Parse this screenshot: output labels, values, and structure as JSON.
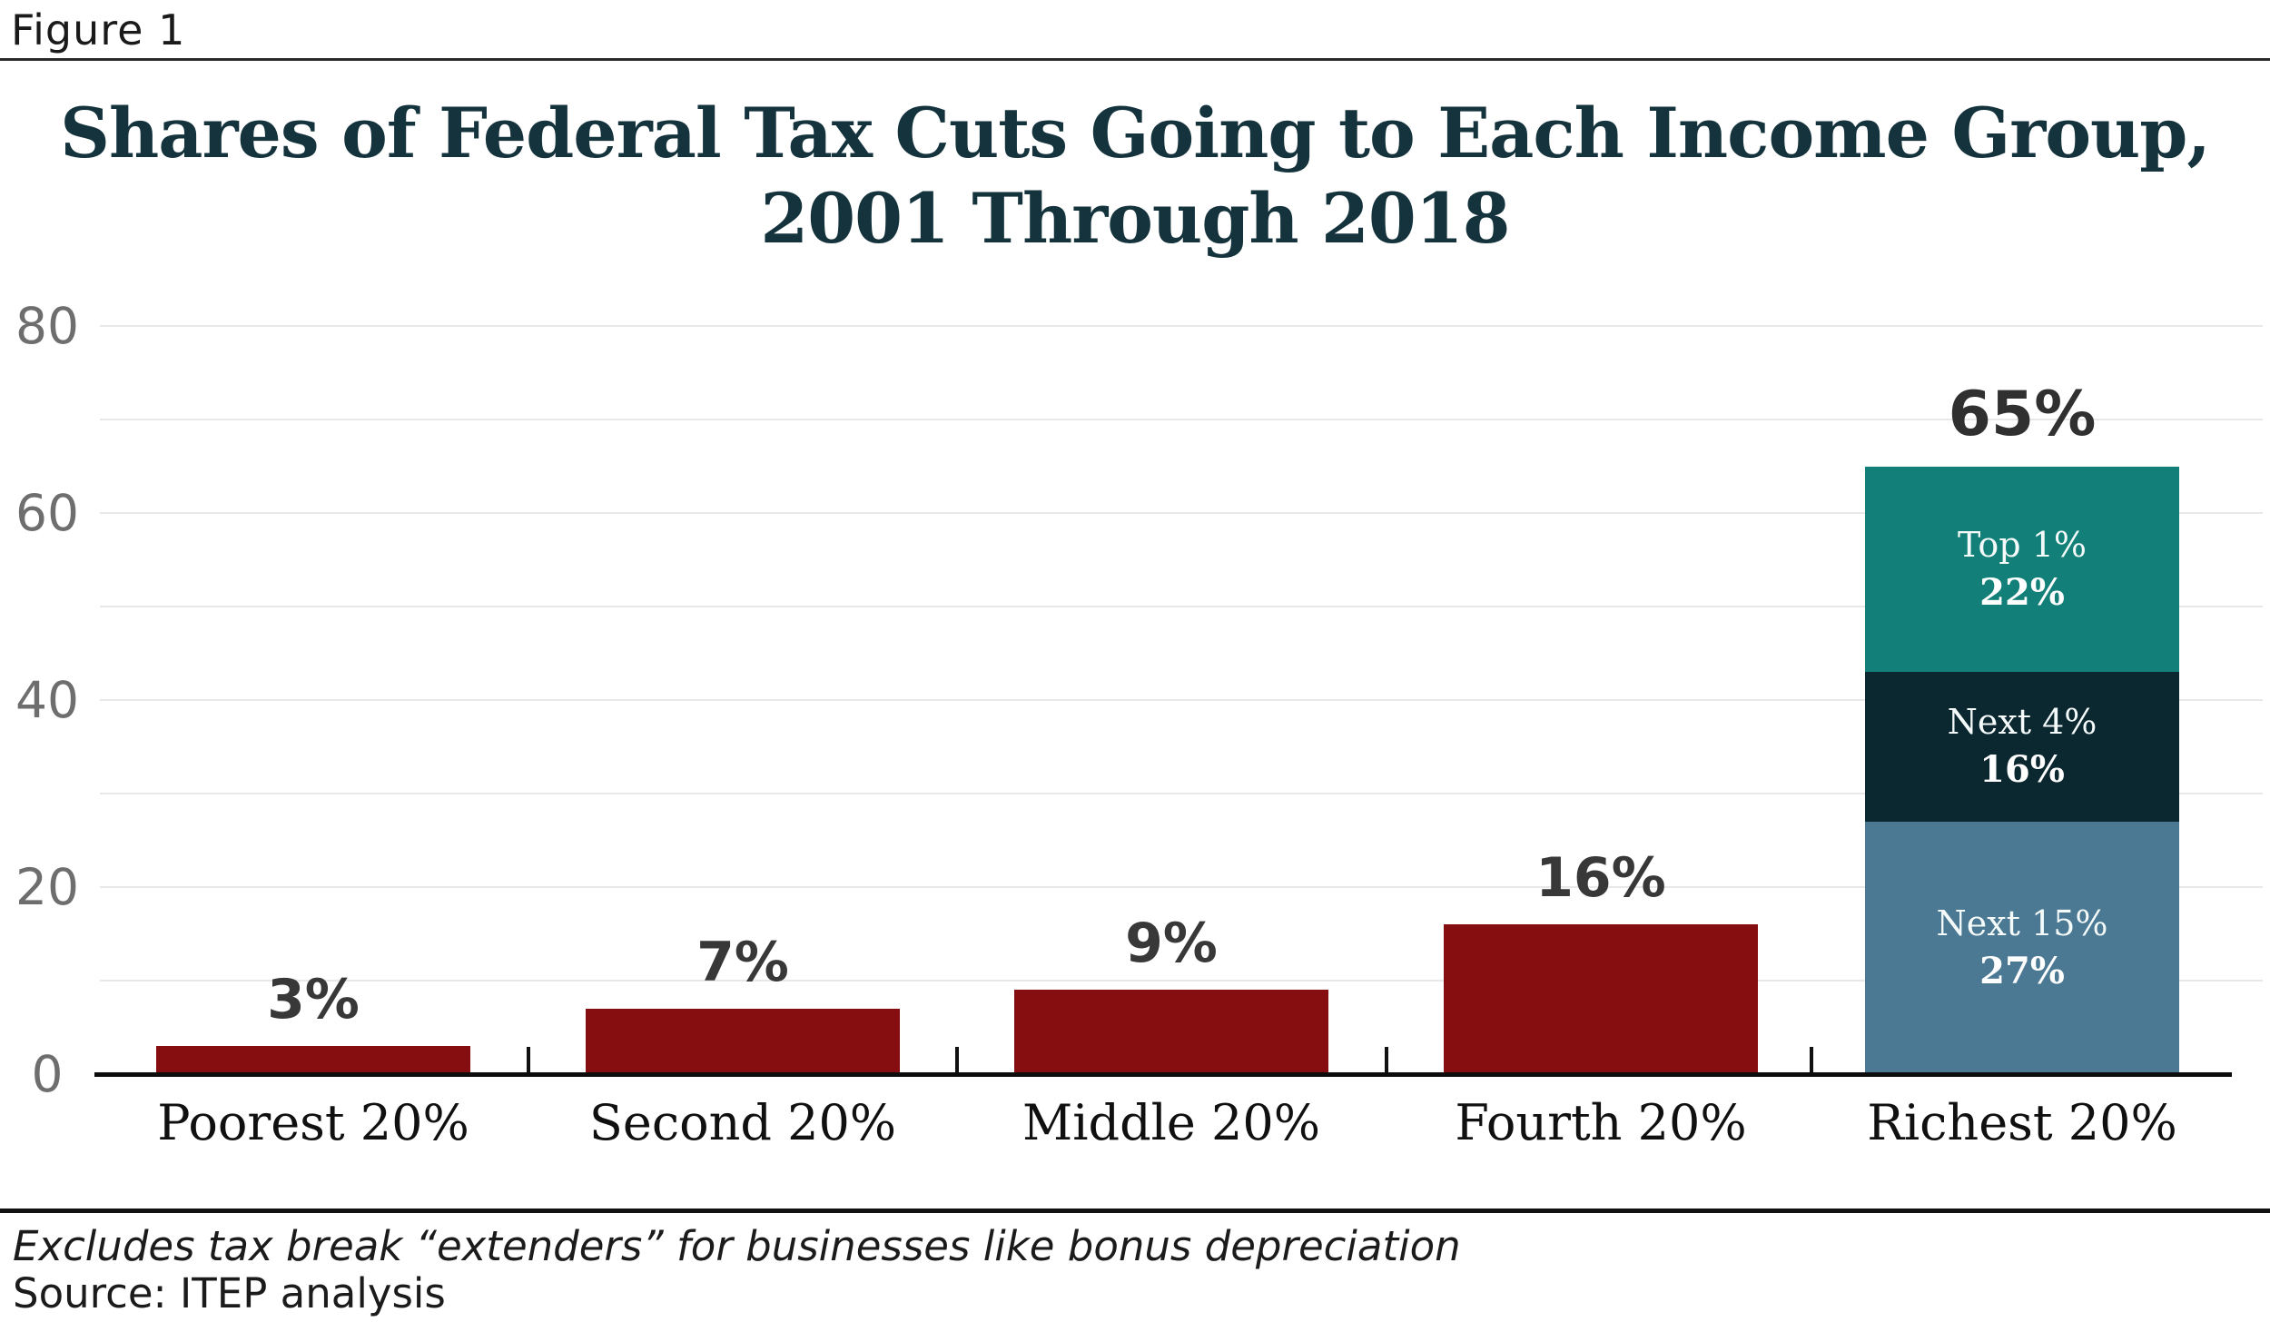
{
  "figure_label": "Figure 1",
  "title": {
    "line1": "Shares of Federal Tax Cuts Going to Each Income Group,",
    "line2": "2001 Through 2018"
  },
  "chart_data": {
    "type": "bar",
    "title": "Shares of Federal Tax Cuts Going to Each Income Group, 2001 Through 2018",
    "xlabel": "",
    "ylabel": "",
    "ylim": [
      0,
      80
    ],
    "y_ticks": [
      0,
      20,
      40,
      60,
      80
    ],
    "gridline_step": 10,
    "grid": true,
    "legend_position": "none",
    "categories": [
      "Poorest 20%",
      "Second 20%",
      "Middle 20%",
      "Fourth 20%",
      "Richest 20%"
    ],
    "values": [
      3,
      7,
      9,
      16,
      65
    ],
    "value_labels": [
      "3%",
      "7%",
      "9%",
      "16%",
      "65%"
    ],
    "bar_color": "#870e10",
    "richest_stack_bottom_up": [
      {
        "name": "Next 15%",
        "value": 27,
        "value_label": "27%",
        "color": "#4b7993"
      },
      {
        "name": "Next 4%",
        "value": 16,
        "value_label": "16%",
        "color": "#0b2730"
      },
      {
        "name": "Top 1%",
        "value": 22,
        "value_label": "22%",
        "color": "#128079"
      }
    ]
  },
  "footer": {
    "note": "Excludes tax break “extenders” for businesses like bonus depreciation",
    "source": "Source: ITEP analysis"
  },
  "colors": {
    "title_text": "#15333d",
    "bar_red": "#870e10",
    "stack_blue_gray": "#4b7993",
    "stack_dark_navy": "#0b2730",
    "stack_teal": "#128079",
    "y_tick_text": "#6e6e6e",
    "gridline": "#e8e8e8",
    "axis": "#0d0d0d",
    "value_label_text": "#383838"
  }
}
